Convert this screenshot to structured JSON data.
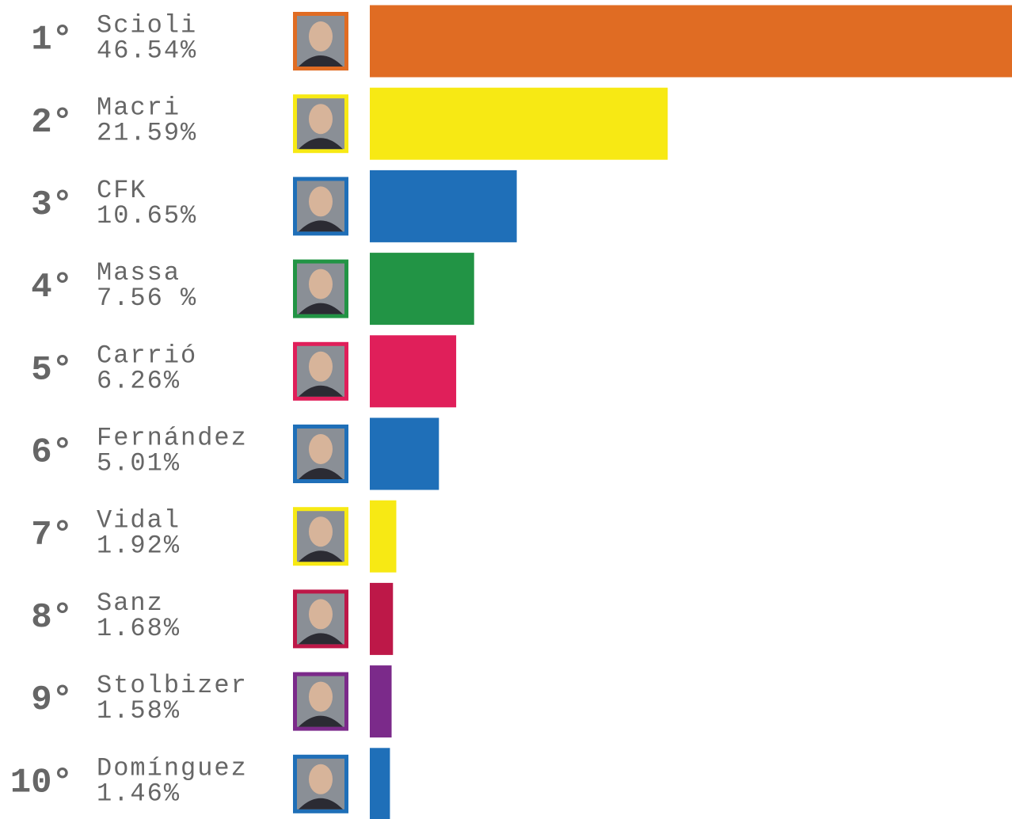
{
  "chart_data": {
    "type": "bar",
    "orientation": "horizontal",
    "ranks": [
      "1°",
      "2°",
      "3°",
      "4°",
      "5°",
      "6°",
      "7°",
      "8°",
      "9°",
      "10°"
    ],
    "categories": [
      "Scioli",
      "Macri",
      "CFK",
      "Massa",
      "Carrió",
      "Fernández",
      "Vidal",
      "Sanz",
      "Stolbizer",
      "Domínguez"
    ],
    "values": [
      46.54,
      21.59,
      10.65,
      7.56,
      6.26,
      5.01,
      1.92,
      1.68,
      1.58,
      1.46
    ],
    "value_labels": [
      "46.54%",
      "21.59%",
      "10.65%",
      "7.56 %",
      "6.26%",
      "5.01%",
      "1.92%",
      "1.68%",
      "1.58%",
      "1.46%"
    ],
    "colors": [
      "#e06c23",
      "#f7e914",
      "#1f6fb8",
      "#229445",
      "#e01f5a",
      "#1f6fb8",
      "#f7e914",
      "#bd1848",
      "#7b2a8a",
      "#1f6fb8"
    ]
  }
}
